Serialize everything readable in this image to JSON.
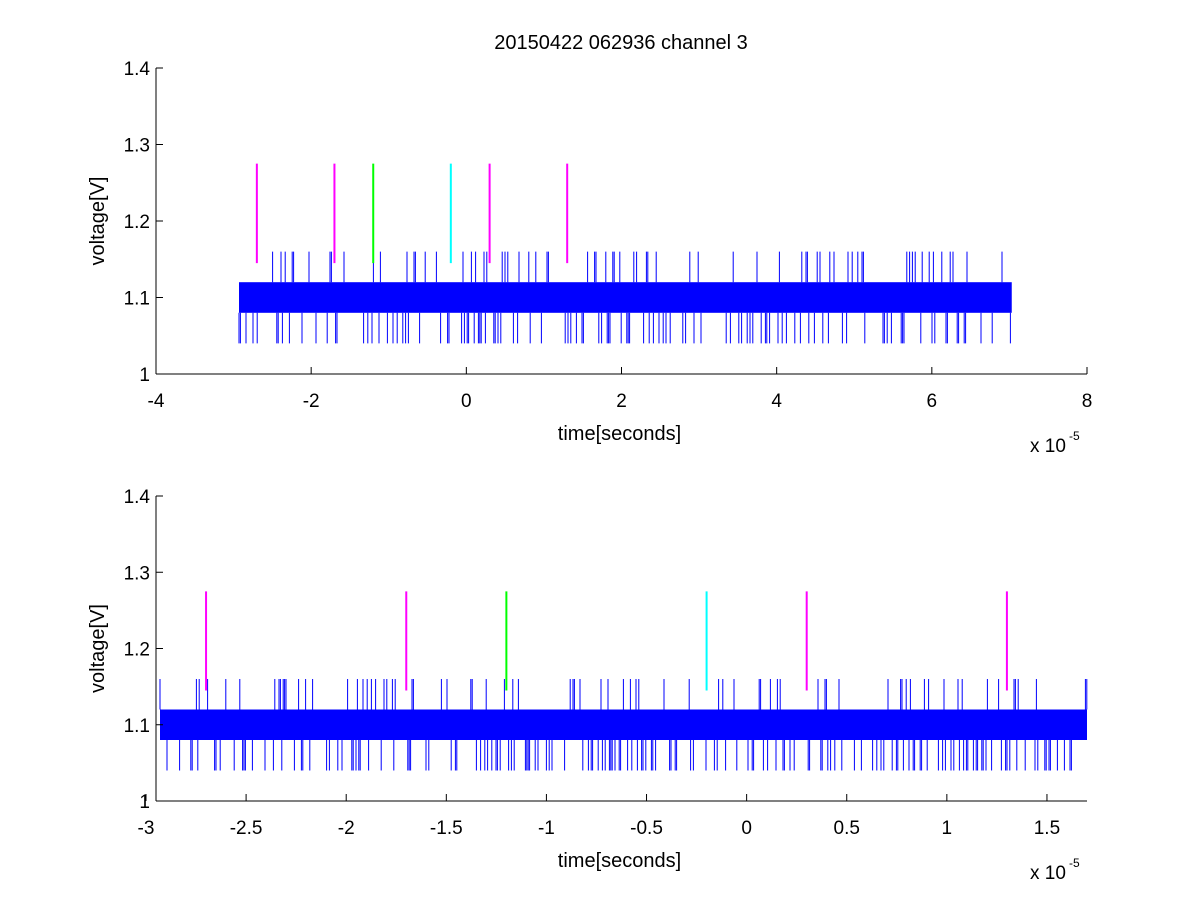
{
  "figure": {
    "title": "20150422 062936 channel 3"
  },
  "chart_data": [
    {
      "type": "line",
      "title": "20150422 062936 channel 3",
      "xlabel": "time[seconds]",
      "ylabel": "voltage[V]",
      "x_multiplier_label": "x 10",
      "x_multiplier_exponent": "-5",
      "xlim": [
        -4e-05,
        8e-05
      ],
      "ylim": [
        1,
        1.4
      ],
      "xticks": [
        -4,
        -2,
        0,
        2,
        4,
        6,
        8
      ],
      "xtick_labels": [
        "-4",
        "-2",
        "0",
        "2",
        "4",
        "6",
        "8"
      ],
      "yticks": [
        1,
        1.1,
        1.2,
        1.3,
        1.4
      ],
      "ytick_labels": [
        "1",
        "1.1",
        "1.2",
        "1.3",
        "1.4"
      ],
      "grid": false,
      "series": [
        {
          "color": "#0000ff",
          "x_range": [
            -2.93e-05,
            7.03e-05
          ],
          "levels": [
            1.04,
            1.08,
            1.12,
            1.16
          ],
          "dominant_band": [
            1.08,
            1.12
          ]
        }
      ],
      "markers": [
        {
          "x": -2.7e-05,
          "y": [
            1.145,
            1.275
          ],
          "color": "#ff00ff"
        },
        {
          "x": -1.7e-05,
          "y": [
            1.145,
            1.275
          ],
          "color": "#ff00ff"
        },
        {
          "x": -1.2e-05,
          "y": [
            1.145,
            1.275
          ],
          "color": "#00ff00"
        },
        {
          "x": -2e-06,
          "y": [
            1.145,
            1.275
          ],
          "color": "#00ffff"
        },
        {
          "x": 3e-06,
          "y": [
            1.145,
            1.275
          ],
          "color": "#ff00ff"
        },
        {
          "x": 1.3e-05,
          "y": [
            1.145,
            1.275
          ],
          "color": "#ff00ff"
        }
      ]
    },
    {
      "type": "line",
      "title": "",
      "xlabel": "time[seconds]",
      "ylabel": "voltage[V]",
      "x_multiplier_label": "x 10",
      "x_multiplier_exponent": "-5",
      "xlim": [
        -2.95e-05,
        1.7e-05
      ],
      "ylim": [
        1,
        1.4
      ],
      "xticks": [
        -3,
        -2.5,
        -2,
        -1.5,
        -1,
        -0.5,
        0,
        0.5,
        1,
        1.5
      ],
      "xtick_labels": [
        "-3",
        "-2.5",
        "-2",
        "-1.5",
        "-1",
        "-0.5",
        "0",
        "0.5",
        "1",
        "1.5"
      ],
      "yticks": [
        1,
        1.1,
        1.2,
        1.3,
        1.4
      ],
      "ytick_labels": [
        "1",
        "1.1",
        "1.2",
        "1.3",
        "1.4"
      ],
      "grid": false,
      "series": [
        {
          "color": "#0000ff",
          "x_range": [
            -2.93e-05,
            1.7e-05
          ],
          "levels": [
            1.04,
            1.08,
            1.12,
            1.16
          ],
          "dominant_band": [
            1.08,
            1.12
          ]
        }
      ],
      "markers": [
        {
          "x": -2.7e-05,
          "y": [
            1.145,
            1.275
          ],
          "color": "#ff00ff"
        },
        {
          "x": -1.7e-05,
          "y": [
            1.145,
            1.275
          ],
          "color": "#ff00ff"
        },
        {
          "x": -1.2e-05,
          "y": [
            1.145,
            1.275
          ],
          "color": "#00ff00"
        },
        {
          "x": -2e-06,
          "y": [
            1.145,
            1.275
          ],
          "color": "#00ffff"
        },
        {
          "x": 3e-06,
          "y": [
            1.145,
            1.275
          ],
          "color": "#ff00ff"
        },
        {
          "x": 1.3e-05,
          "y": [
            1.145,
            1.275
          ],
          "color": "#ff00ff"
        }
      ]
    }
  ]
}
